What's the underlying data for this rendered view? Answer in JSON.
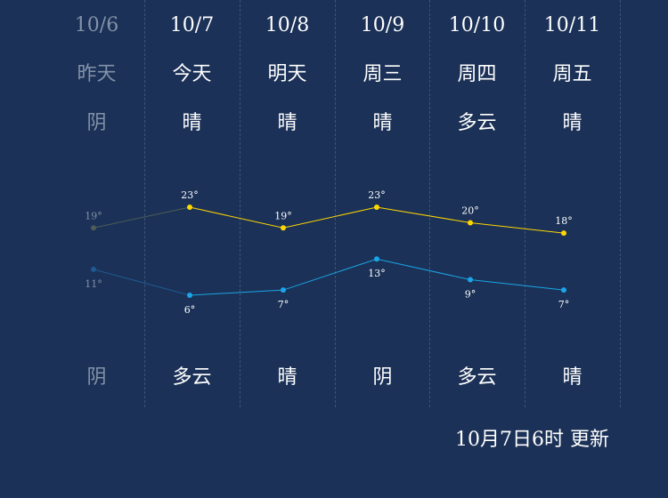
{
  "days": [
    {
      "date": "10/6",
      "name": "昨天",
      "day_weather": "阴",
      "night_weather": "阴",
      "muted": true
    },
    {
      "date": "10/7",
      "name": "今天",
      "day_weather": "晴",
      "night_weather": "多云",
      "muted": false
    },
    {
      "date": "10/8",
      "name": "明天",
      "day_weather": "晴",
      "night_weather": "晴",
      "muted": false
    },
    {
      "date": "10/9",
      "name": "周三",
      "day_weather": "晴",
      "night_weather": "阴",
      "muted": false
    },
    {
      "date": "10/10",
      "name": "周四",
      "day_weather": "多云",
      "night_weather": "多云",
      "muted": false
    },
    {
      "date": "10/11",
      "name": "周五",
      "day_weather": "晴",
      "night_weather": "晴",
      "muted": false
    }
  ],
  "chart_data": {
    "type": "line",
    "x": [
      "10/6",
      "10/7",
      "10/8",
      "10/9",
      "10/10",
      "10/11"
    ],
    "series": [
      {
        "values": [
          19,
          23,
          19,
          23,
          20,
          18
        ],
        "labels": [
          "19°",
          "23°",
          "19°",
          "23°",
          "20°",
          "18°"
        ],
        "color": "#ffd700"
      },
      {
        "values": [
          11,
          6,
          7,
          13,
          9,
          7
        ],
        "labels": [
          "11°",
          "6°",
          "7°",
          "13°",
          "9°",
          "7°"
        ],
        "color": "#1aa6e6"
      }
    ],
    "first_point_color_high": "#4e5d57",
    "first_point_color_low": "#1f5a90"
  },
  "footer": {
    "update_text": "10月7日6时 更新"
  },
  "colors": {
    "background": "#1b3157",
    "divider": "#3c5478",
    "muted_text": "#8392a8"
  }
}
